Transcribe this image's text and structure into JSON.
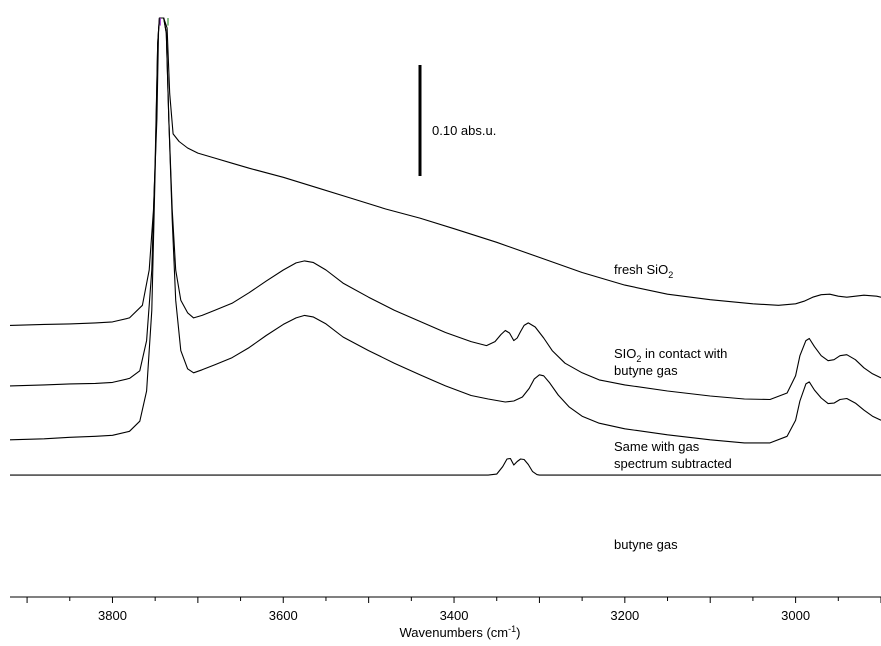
{
  "chart_data": {
    "type": "line",
    "xlabel": "Wavenumbers (cm-1)",
    "xlabel_parts": {
      "base": "Wavenumbers (cm",
      "sup": "-1",
      "end": ")"
    },
    "x_reversed": true,
    "xlim": [
      3920,
      2900
    ],
    "ylim": [
      0,
      1
    ],
    "x_ticks": [
      3800,
      3600,
      3400,
      3200,
      3000
    ],
    "x_tick_labels": [
      "3800",
      "3600",
      "3400",
      "3200",
      "3000"
    ],
    "grid": false,
    "scale_bar": {
      "label": "0.10 abs.u.",
      "value": 0.1
    },
    "spectrum_labels": [
      {
        "lines": [
          [
            {
              "t": "fresh  SiO"
            },
            {
              "t": "2",
              "sub": true
            }
          ]
        ]
      },
      {
        "lines": [
          [
            {
              "t": "SIO"
            },
            {
              "t": "2",
              "sub": true
            },
            {
              "t": " in contact with"
            }
          ],
          [
            {
              "t": "butyne gas"
            }
          ]
        ]
      },
      {
        "lines": [
          [
            {
              "t": "Same with gas"
            }
          ],
          [
            {
              "t": "spectrum subtracted"
            }
          ]
        ]
      },
      {
        "lines": [
          [
            {
              "t": "butyne gas"
            }
          ]
        ]
      }
    ],
    "series": [
      {
        "color": "#000000",
        "points": [
          [
            3920,
            0.39
          ],
          [
            3880,
            0.392
          ],
          [
            3850,
            0.393
          ],
          [
            3820,
            0.395
          ],
          [
            3800,
            0.397
          ],
          [
            3780,
            0.405
          ],
          [
            3765,
            0.43
          ],
          [
            3757,
            0.5
          ],
          [
            3752,
            0.62
          ],
          [
            3748,
            0.8
          ],
          [
            3746,
            0.98
          ],
          [
            3744,
            1.0
          ],
          [
            3740,
            1.0
          ],
          [
            3736,
            0.98
          ],
          [
            3733,
            0.85
          ],
          [
            3729,
            0.77
          ],
          [
            3722,
            0.755
          ],
          [
            3712,
            0.742
          ],
          [
            3700,
            0.732
          ],
          [
            3680,
            0.722
          ],
          [
            3660,
            0.712
          ],
          [
            3640,
            0.702
          ],
          [
            3600,
            0.684
          ],
          [
            3560,
            0.663
          ],
          [
            3520,
            0.642
          ],
          [
            3480,
            0.621
          ],
          [
            3440,
            0.603
          ],
          [
            3400,
            0.582
          ],
          [
            3350,
            0.555
          ],
          [
            3300,
            0.525
          ],
          [
            3250,
            0.495
          ],
          [
            3200,
            0.47
          ],
          [
            3150,
            0.452
          ],
          [
            3100,
            0.441
          ],
          [
            3050,
            0.433
          ],
          [
            3020,
            0.43
          ],
          [
            3000,
            0.433
          ],
          [
            2990,
            0.438
          ],
          [
            2980,
            0.446
          ],
          [
            2970,
            0.451
          ],
          [
            2960,
            0.452
          ],
          [
            2950,
            0.448
          ],
          [
            2940,
            0.446
          ],
          [
            2930,
            0.448
          ],
          [
            2920,
            0.45
          ],
          [
            2905,
            0.448
          ],
          [
            2900,
            0.446
          ]
        ]
      },
      {
        "color": "#000000",
        "points": [
          [
            3920,
            0.27
          ],
          [
            3880,
            0.272
          ],
          [
            3850,
            0.274
          ],
          [
            3820,
            0.275
          ],
          [
            3800,
            0.277
          ],
          [
            3780,
            0.285
          ],
          [
            3768,
            0.3
          ],
          [
            3760,
            0.36
          ],
          [
            3754,
            0.5
          ],
          [
            3750,
            0.72
          ],
          [
            3747,
            0.95
          ],
          [
            3745,
            1.0
          ],
          [
            3740,
            1.0
          ],
          [
            3737,
            0.97
          ],
          [
            3734,
            0.8
          ],
          [
            3730,
            0.62
          ],
          [
            3726,
            0.5
          ],
          [
            3720,
            0.44
          ],
          [
            3712,
            0.415
          ],
          [
            3705,
            0.405
          ],
          [
            3695,
            0.41
          ],
          [
            3680,
            0.42
          ],
          [
            3660,
            0.434
          ],
          [
            3640,
            0.455
          ],
          [
            3620,
            0.478
          ],
          [
            3600,
            0.5
          ],
          [
            3585,
            0.514
          ],
          [
            3575,
            0.518
          ],
          [
            3565,
            0.515
          ],
          [
            3550,
            0.5
          ],
          [
            3530,
            0.474
          ],
          [
            3500,
            0.446
          ],
          [
            3470,
            0.42
          ],
          [
            3440,
            0.398
          ],
          [
            3410,
            0.376
          ],
          [
            3380,
            0.358
          ],
          [
            3362,
            0.35
          ],
          [
            3352,
            0.358
          ],
          [
            3345,
            0.372
          ],
          [
            3340,
            0.38
          ],
          [
            3335,
            0.375
          ],
          [
            3330,
            0.36
          ],
          [
            3326,
            0.365
          ],
          [
            3322,
            0.378
          ],
          [
            3318,
            0.39
          ],
          [
            3313,
            0.395
          ],
          [
            3305,
            0.387
          ],
          [
            3295,
            0.365
          ],
          [
            3285,
            0.34
          ],
          [
            3270,
            0.315
          ],
          [
            3250,
            0.296
          ],
          [
            3230,
            0.282
          ],
          [
            3200,
            0.272
          ],
          [
            3150,
            0.26
          ],
          [
            3100,
            0.25
          ],
          [
            3060,
            0.244
          ],
          [
            3030,
            0.243
          ],
          [
            3010,
            0.256
          ],
          [
            3000,
            0.29
          ],
          [
            2995,
            0.33
          ],
          [
            2988,
            0.36
          ],
          [
            2984,
            0.364
          ],
          [
            2978,
            0.348
          ],
          [
            2970,
            0.33
          ],
          [
            2962,
            0.32
          ],
          [
            2955,
            0.322
          ],
          [
            2948,
            0.33
          ],
          [
            2940,
            0.332
          ],
          [
            2930,
            0.322
          ],
          [
            2920,
            0.306
          ],
          [
            2910,
            0.294
          ],
          [
            2900,
            0.286
          ]
        ]
      },
      {
        "color": "#000000",
        "points": [
          [
            3920,
            0.163
          ],
          [
            3880,
            0.165
          ],
          [
            3850,
            0.168
          ],
          [
            3820,
            0.17
          ],
          [
            3800,
            0.172
          ],
          [
            3780,
            0.18
          ],
          [
            3768,
            0.2
          ],
          [
            3760,
            0.26
          ],
          [
            3754,
            0.42
          ],
          [
            3750,
            0.7
          ],
          [
            3747,
            0.95
          ],
          [
            3745,
            1.0
          ],
          [
            3740,
            1.0
          ],
          [
            3737,
            0.97
          ],
          [
            3734,
            0.8
          ],
          [
            3730,
            0.6
          ],
          [
            3726,
            0.44
          ],
          [
            3720,
            0.34
          ],
          [
            3712,
            0.304
          ],
          [
            3705,
            0.296
          ],
          [
            3695,
            0.302
          ],
          [
            3680,
            0.312
          ],
          [
            3660,
            0.326
          ],
          [
            3640,
            0.346
          ],
          [
            3620,
            0.37
          ],
          [
            3600,
            0.392
          ],
          [
            3585,
            0.405
          ],
          [
            3575,
            0.41
          ],
          [
            3565,
            0.407
          ],
          [
            3550,
            0.393
          ],
          [
            3530,
            0.367
          ],
          [
            3500,
            0.34
          ],
          [
            3470,
            0.315
          ],
          [
            3440,
            0.292
          ],
          [
            3410,
            0.27
          ],
          [
            3380,
            0.251
          ],
          [
            3360,
            0.244
          ],
          [
            3340,
            0.238
          ],
          [
            3330,
            0.24
          ],
          [
            3320,
            0.248
          ],
          [
            3312,
            0.265
          ],
          [
            3306,
            0.284
          ],
          [
            3300,
            0.292
          ],
          [
            3295,
            0.29
          ],
          [
            3288,
            0.276
          ],
          [
            3278,
            0.252
          ],
          [
            3265,
            0.228
          ],
          [
            3250,
            0.21
          ],
          [
            3230,
            0.196
          ],
          [
            3200,
            0.185
          ],
          [
            3150,
            0.173
          ],
          [
            3100,
            0.163
          ],
          [
            3060,
            0.157
          ],
          [
            3030,
            0.157
          ],
          [
            3010,
            0.17
          ],
          [
            3000,
            0.202
          ],
          [
            2995,
            0.24
          ],
          [
            2988,
            0.274
          ],
          [
            2984,
            0.278
          ],
          [
            2978,
            0.262
          ],
          [
            2970,
            0.246
          ],
          [
            2962,
            0.235
          ],
          [
            2955,
            0.236
          ],
          [
            2948,
            0.243
          ],
          [
            2940,
            0.245
          ],
          [
            2930,
            0.236
          ],
          [
            2920,
            0.222
          ],
          [
            2910,
            0.21
          ],
          [
            2900,
            0.202
          ]
        ]
      },
      {
        "color": "#000000",
        "points": [
          [
            3920,
            0.093
          ],
          [
            3360,
            0.093
          ],
          [
            3350,
            0.095
          ],
          [
            3343,
            0.11
          ],
          [
            3338,
            0.125
          ],
          [
            3334,
            0.126
          ],
          [
            3330,
            0.113
          ],
          [
            3326,
            0.12
          ],
          [
            3322,
            0.125
          ],
          [
            3318,
            0.124
          ],
          [
            3313,
            0.114
          ],
          [
            3308,
            0.1
          ],
          [
            3303,
            0.094
          ],
          [
            3300,
            0.093
          ],
          [
            2900,
            0.093
          ]
        ]
      },
      {
        "color": "#9b30d0",
        "points": [
          [
            3744,
            0.985
          ],
          [
            3744,
            1.0
          ]
        ]
      },
      {
        "color": "#2e8b2e",
        "points": [
          [
            3735,
            0.985
          ],
          [
            3735,
            1.0
          ]
        ]
      }
    ]
  }
}
